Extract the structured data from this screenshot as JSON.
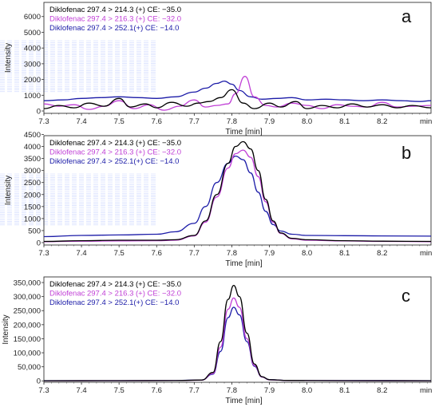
{
  "colors": {
    "black_series": "#000000",
    "magenta_series": "#c03fd6",
    "blue_series": "#1c1ca8"
  },
  "chart_data": [
    {
      "id": "a",
      "type": "line",
      "panel_label": "a",
      "xlabel": "Time [min]",
      "ylabel": "Intensity",
      "x_unit_label": "min",
      "xlim": [
        7.3,
        8.33
      ],
      "ylim": [
        -150,
        6900
      ],
      "xticks": [
        "7.3",
        "7.4",
        "7.5",
        "7.6",
        "7.7",
        "7.8",
        "7.9",
        "8.0",
        "8.1",
        "8.2"
      ],
      "yticks": [
        "0",
        "1000",
        "2000",
        "3000",
        "4000",
        "5000",
        "6000"
      ],
      "series": [
        {
          "name": "Diklofenac 297.4 > 214.3 (+) CE: −35.0",
          "color": "#000000",
          "points": [
            [
              7.3,
              150
            ],
            [
              7.34,
              350
            ],
            [
              7.38,
              200
            ],
            [
              7.42,
              500
            ],
            [
              7.46,
              300
            ],
            [
              7.5,
              800
            ],
            [
              7.53,
              250
            ],
            [
              7.57,
              450
            ],
            [
              7.6,
              200
            ],
            [
              7.64,
              550
            ],
            [
              7.68,
              300
            ],
            [
              7.71,
              500
            ],
            [
              7.74,
              600
            ],
            [
              7.77,
              850
            ],
            [
              7.8,
              1350
            ],
            [
              7.83,
              500
            ],
            [
              7.86,
              150
            ],
            [
              7.9,
              500
            ],
            [
              7.93,
              250
            ],
            [
              7.97,
              600
            ],
            [
              8.0,
              150
            ],
            [
              8.04,
              350
            ],
            [
              8.08,
              200
            ],
            [
              8.12,
              450
            ],
            [
              8.16,
              250
            ],
            [
              8.2,
              400
            ],
            [
              8.24,
              200
            ],
            [
              8.28,
              350
            ],
            [
              8.33,
              200
            ]
          ]
        },
        {
          "name": "Diklofenac 297.4 > 216.3 (+) CE: −32.0",
          "color": "#c03fd6",
          "points": [
            [
              7.3,
              450
            ],
            [
              7.34,
              300
            ],
            [
              7.38,
              400
            ],
            [
              7.42,
              100
            ],
            [
              7.46,
              300
            ],
            [
              7.5,
              650
            ],
            [
              7.54,
              150
            ],
            [
              7.58,
              400
            ],
            [
              7.62,
              50
            ],
            [
              7.66,
              300
            ],
            [
              7.7,
              700
            ],
            [
              7.73,
              250
            ],
            [
              7.76,
              350
            ],
            [
              7.79,
              450
            ],
            [
              7.81,
              1100
            ],
            [
              7.835,
              2200
            ],
            [
              7.86,
              900
            ],
            [
              7.89,
              350
            ],
            [
              7.92,
              250
            ],
            [
              7.96,
              500
            ],
            [
              8.0,
              350
            ],
            [
              8.04,
              150
            ],
            [
              8.08,
              400
            ],
            [
              8.12,
              300
            ],
            [
              8.16,
              250
            ],
            [
              8.2,
              550
            ],
            [
              8.24,
              250
            ],
            [
              8.28,
              300
            ],
            [
              8.33,
              350
            ]
          ]
        },
        {
          "name": "Diklofenac 297.4 > 252.1(+) CE: −14.0",
          "color": "#1c1ca8",
          "points": [
            [
              7.3,
              650
            ],
            [
              7.35,
              700
            ],
            [
              7.4,
              800
            ],
            [
              7.45,
              850
            ],
            [
              7.5,
              900
            ],
            [
              7.55,
              850
            ],
            [
              7.6,
              800
            ],
            [
              7.65,
              900
            ],
            [
              7.7,
              1200
            ],
            [
              7.73,
              1450
            ],
            [
              7.76,
              1750
            ],
            [
              7.78,
              1900
            ],
            [
              7.8,
              1700
            ],
            [
              7.82,
              1300
            ],
            [
              7.85,
              900
            ],
            [
              7.88,
              750
            ],
            [
              7.92,
              800
            ],
            [
              7.96,
              850
            ],
            [
              8.0,
              700
            ],
            [
              8.05,
              750
            ],
            [
              8.1,
              700
            ],
            [
              8.15,
              650
            ],
            [
              8.2,
              700
            ],
            [
              8.25,
              650
            ],
            [
              8.3,
              600
            ],
            [
              8.33,
              650
            ]
          ]
        }
      ]
    },
    {
      "id": "b",
      "type": "line",
      "panel_label": "b",
      "xlabel": "Time [min]",
      "ylabel": "Intensity",
      "x_unit_label": "min",
      "xlim": [
        7.3,
        8.33
      ],
      "ylim": [
        -100,
        4450
      ],
      "xticks": [
        "7.3",
        "7.4",
        "7.5",
        "7.6",
        "7.7",
        "7.8",
        "7.9",
        "8.0",
        "8.1",
        "8.2"
      ],
      "yticks": [
        "0",
        "500",
        "1000",
        "1500",
        "2000",
        "2500",
        "3000",
        "3500",
        "4000",
        "4500"
      ],
      "series": [
        {
          "name": "Diklofenac 297.4 > 214.3 (+) CE: −35.0",
          "color": "#000000",
          "points": [
            [
              7.3,
              50
            ],
            [
              7.4,
              80
            ],
            [
              7.5,
              100
            ],
            [
              7.6,
              100
            ],
            [
              7.65,
              120
            ],
            [
              7.7,
              300
            ],
            [
              7.73,
              900
            ],
            [
              7.76,
              2000
            ],
            [
              7.79,
              3300
            ],
            [
              7.81,
              4000
            ],
            [
              7.83,
              4200
            ],
            [
              7.85,
              3900
            ],
            [
              7.87,
              3000
            ],
            [
              7.89,
              1800
            ],
            [
              7.91,
              900
            ],
            [
              7.93,
              400
            ],
            [
              7.96,
              180
            ],
            [
              8.0,
              120
            ],
            [
              8.1,
              80
            ],
            [
              8.2,
              60
            ],
            [
              8.33,
              50
            ]
          ]
        },
        {
          "name": "Diklofenac 297.4 > 216.3 (+) CE: −32.0",
          "color": "#c03fd6",
          "points": [
            [
              7.3,
              40
            ],
            [
              7.4,
              60
            ],
            [
              7.5,
              70
            ],
            [
              7.6,
              80
            ],
            [
              7.65,
              100
            ],
            [
              7.7,
              280
            ],
            [
              7.73,
              850
            ],
            [
              7.76,
              1900
            ],
            [
              7.79,
              3100
            ],
            [
              7.81,
              3700
            ],
            [
              7.83,
              3850
            ],
            [
              7.85,
              3550
            ],
            [
              7.87,
              2750
            ],
            [
              7.89,
              1700
            ],
            [
              7.91,
              850
            ],
            [
              7.93,
              380
            ],
            [
              7.96,
              160
            ],
            [
              8.0,
              100
            ],
            [
              8.1,
              70
            ],
            [
              8.2,
              50
            ],
            [
              8.33,
              40
            ]
          ]
        },
        {
          "name": "Diklofenac 297.4 > 252.1(+) CE: −14.0",
          "color": "#1c1ca8",
          "points": [
            [
              7.3,
              250
            ],
            [
              7.4,
              300
            ],
            [
              7.5,
              320
            ],
            [
              7.6,
              350
            ],
            [
              7.65,
              450
            ],
            [
              7.7,
              800
            ],
            [
              7.73,
              1500
            ],
            [
              7.76,
              2500
            ],
            [
              7.79,
              3300
            ],
            [
              7.81,
              3600
            ],
            [
              7.83,
              3450
            ],
            [
              7.85,
              2900
            ],
            [
              7.87,
              2100
            ],
            [
              7.89,
              1300
            ],
            [
              7.91,
              750
            ],
            [
              7.93,
              480
            ],
            [
              7.96,
              350
            ],
            [
              8.0,
              300
            ],
            [
              8.1,
              290
            ],
            [
              8.2,
              280
            ],
            [
              8.33,
              270
            ]
          ]
        }
      ]
    },
    {
      "id": "c",
      "type": "line",
      "panel_label": "c",
      "xlabel": "Time [min]",
      "ylabel": "Intensity",
      "x_unit_label": "min",
      "xlim": [
        7.3,
        8.33
      ],
      "ylim": [
        -5000,
        370000
      ],
      "xticks": [
        "7.3",
        "7.4",
        "7.5",
        "7.6",
        "7.7",
        "7.8",
        "7.9",
        "8.0",
        "8.1",
        "8.2"
      ],
      "yticks": [
        "0",
        "50,000",
        "100,000",
        "150,000",
        "200,000",
        "250,000",
        "300,000",
        "350,000"
      ],
      "series": [
        {
          "name": "Diklofenac 297.4 > 214.3 (+) CE: −35.0",
          "color": "#000000",
          "points": [
            [
              7.3,
              500
            ],
            [
              7.5,
              700
            ],
            [
              7.65,
              1000
            ],
            [
              7.72,
              3000
            ],
            [
              7.75,
              30000
            ],
            [
              7.77,
              140000
            ],
            [
              7.79,
              290000
            ],
            [
              7.805,
              340000
            ],
            [
              7.82,
              300000
            ],
            [
              7.84,
              170000
            ],
            [
              7.86,
              60000
            ],
            [
              7.88,
              15000
            ],
            [
              7.9,
              4000
            ],
            [
              7.95,
              1500
            ],
            [
              8.1,
              800
            ],
            [
              8.33,
              500
            ]
          ]
        },
        {
          "name": "Diklofenac 297.4 > 216.3 (+) CE: −32.0",
          "color": "#c03fd6",
          "points": [
            [
              7.3,
              400
            ],
            [
              7.5,
              600
            ],
            [
              7.65,
              900
            ],
            [
              7.72,
              2800
            ],
            [
              7.75,
              26000
            ],
            [
              7.77,
              120000
            ],
            [
              7.79,
              255000
            ],
            [
              7.805,
              295000
            ],
            [
              7.82,
              262000
            ],
            [
              7.84,
              150000
            ],
            [
              7.86,
              55000
            ],
            [
              7.88,
              14000
            ],
            [
              7.9,
              3500
            ],
            [
              7.95,
              1200
            ],
            [
              8.1,
              700
            ],
            [
              8.33,
              400
            ]
          ]
        },
        {
          "name": "Diklofenac 297.4 > 252.1(+) CE: −14.0",
          "color": "#1c1ca8",
          "points": [
            [
              7.3,
              600
            ],
            [
              7.5,
              800
            ],
            [
              7.65,
              1200
            ],
            [
              7.72,
              3200
            ],
            [
              7.75,
              24000
            ],
            [
              7.77,
              105000
            ],
            [
              7.79,
              225000
            ],
            [
              7.805,
              262000
            ],
            [
              7.82,
              235000
            ],
            [
              7.84,
              140000
            ],
            [
              7.86,
              52000
            ],
            [
              7.88,
              14000
            ],
            [
              7.9,
              4000
            ],
            [
              7.95,
              1600
            ],
            [
              8.1,
              900
            ],
            [
              8.33,
              600
            ]
          ]
        }
      ]
    }
  ]
}
